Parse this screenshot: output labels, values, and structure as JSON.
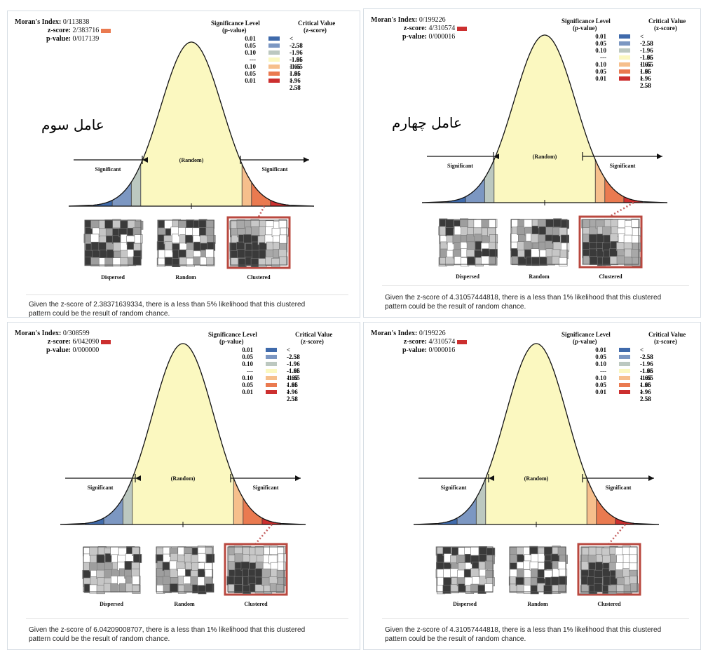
{
  "labels": {
    "moran": "Moran's Index:",
    "zscore": "z-score:",
    "pvalue": "p-value:",
    "sig_level": "Significance Level",
    "p_value": "(p-value)",
    "crit_value": "Critical Value",
    "z_score": "(z-score)",
    "random": "(Random)",
    "significant": "Significant",
    "dispersed": "Dispersed",
    "random_map": "Random",
    "clustered": "Clustered",
    "caption_line2": "pattern could be the result of random chance."
  },
  "legend": [
    {
      "p": "0.01",
      "z": "< -2.58",
      "color": "#3f6aab"
    },
    {
      "p": "0.05",
      "z": "-2.58 - -1.96",
      "color": "#7c97c2"
    },
    {
      "p": "0.10",
      "z": "-1.96 - -1.65",
      "color": "#bcc8c0"
    },
    {
      "p": "---",
      "z": "-1.65 - 1.65",
      "color": "#fbf8c0"
    },
    {
      "p": "0.10",
      "z": "1.65 - 1.96",
      "color": "#f6bf8c"
    },
    {
      "p": "0.05",
      "z": "1.96 - 2.58",
      "color": "#ea7a50"
    },
    {
      "p": "0.01",
      "z": "> 2.58",
      "color": "#cc2f2f"
    }
  ],
  "panels": [
    {
      "moran": "0/113838",
      "zscore": "2/383716",
      "pvalue": "0/017139",
      "marker_color": "#ea7a50",
      "factor_label": "عامل سوم",
      "caption": "Given the z-score of 2.38371639334, there is a less than 5% likelihood that this clustered",
      "z": 2.38
    },
    {
      "moran": "0/199226",
      "zscore": "4/310574",
      "pvalue": "0/000016",
      "marker_color": "#cc2f2f",
      "factor_label": "عامل چهارم",
      "caption": "Given the z-score of 4.31057444818, there is a less than 1% likelihood that this clustered",
      "z": 2.9
    },
    {
      "moran": "0/308599",
      "zscore": "6/042090",
      "pvalue": "0/000000",
      "marker_color": "#cc2f2f",
      "factor_label": "",
      "caption": "Given the z-score of 6.04209008707, there is a less than 1% likelihood that this clustered",
      "z": 2.9
    },
    {
      "moran": "0/199226",
      "zscore": "4/310574",
      "pvalue": "0/000016",
      "marker_color": "#cc2f2f",
      "factor_label": "",
      "caption": "Given the z-score of 4.31057444818, there is a less than 1% likelihood that this clustered",
      "z": 2.9
    }
  ]
}
